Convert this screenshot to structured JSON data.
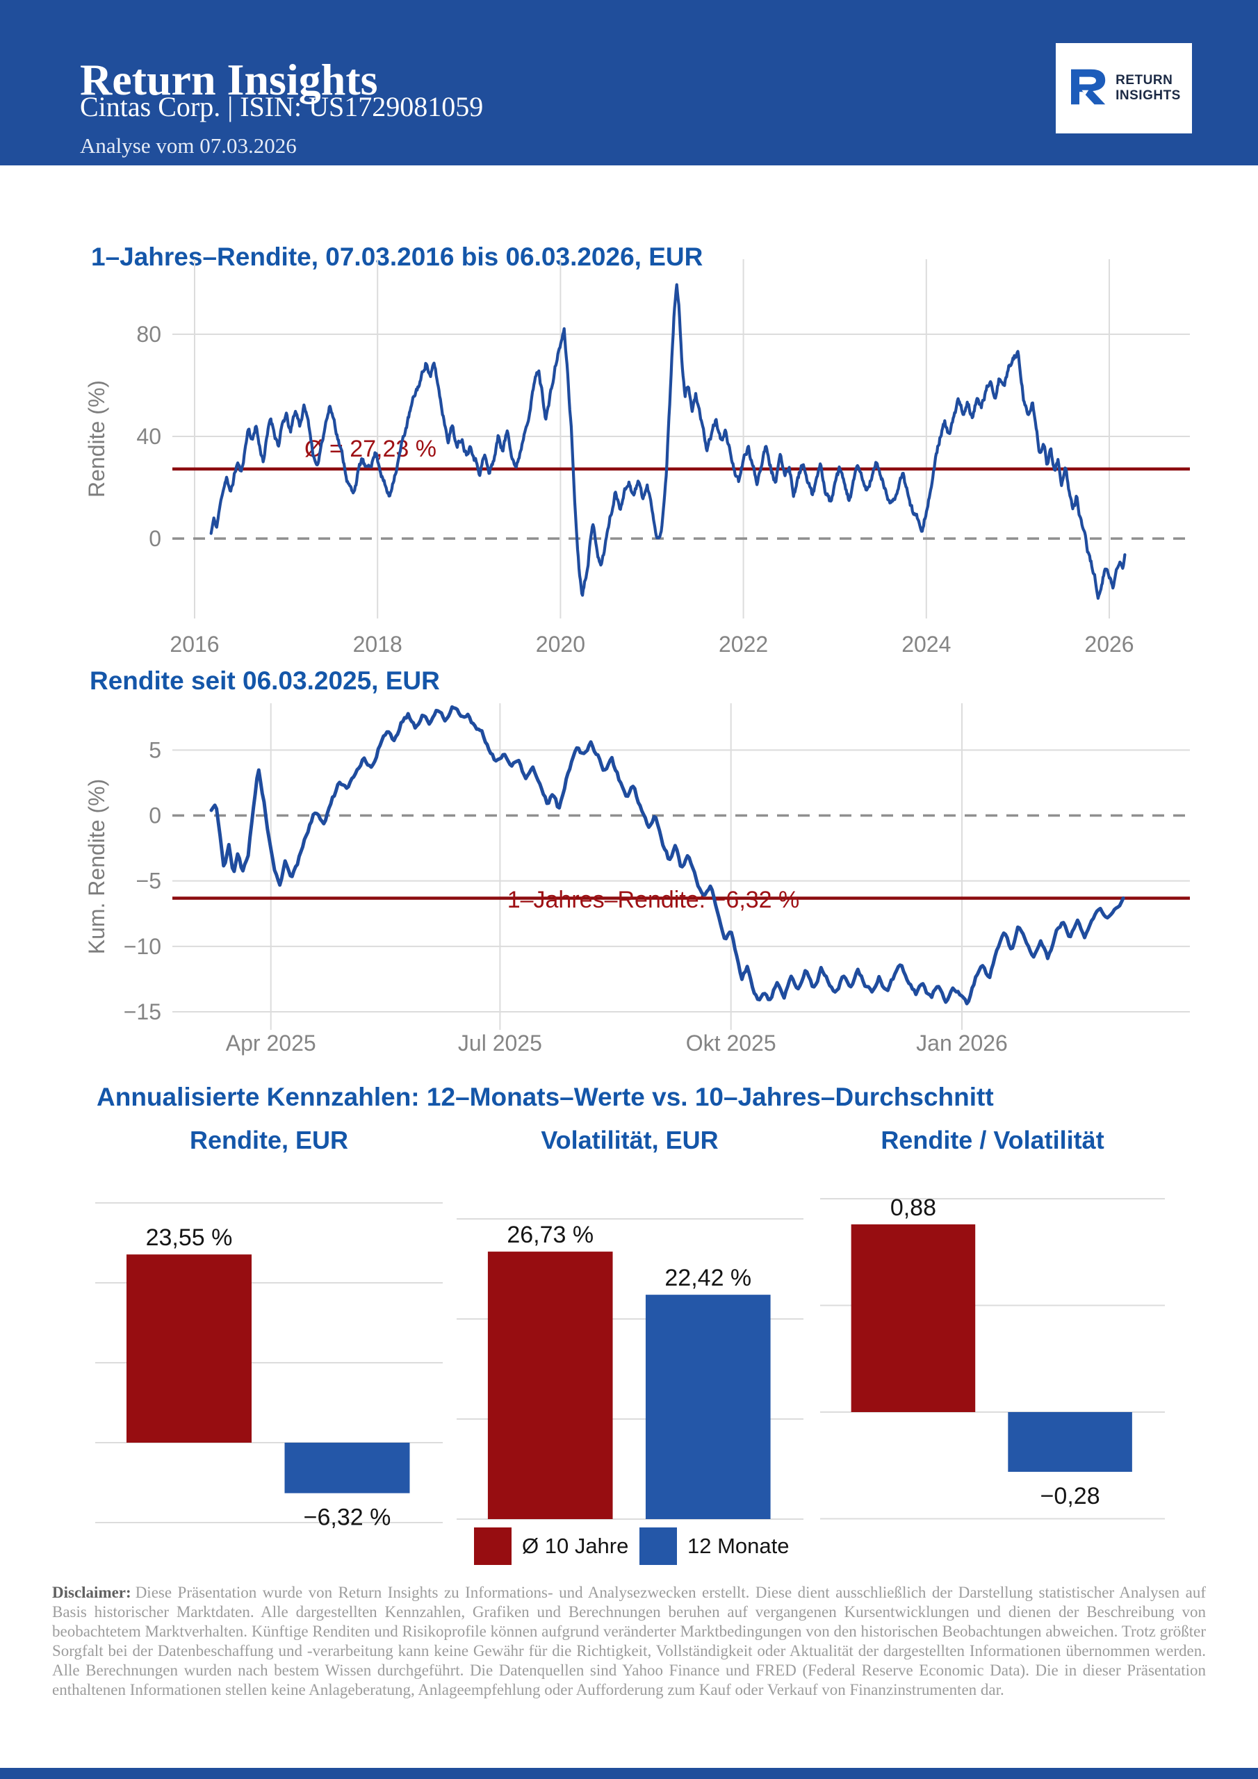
{
  "colors": {
    "header_bg": "#204e9b",
    "title_blue": "#1456a9",
    "line_blue": "#1f4c9e",
    "dark_red": "#970d11",
    "dark_red_line": "#8c0c0f",
    "annotation_red": "#9e1014",
    "bar_blue": "#2457a8",
    "grid_gray": "#dcdcdc",
    "tick_gray": "#848484",
    "zero_dash_gray": "#8f8f8f",
    "label_black": "#141414",
    "logo_icon_blue": "#1d5cba",
    "logo_text_navy": "#1b2944"
  },
  "header": {
    "title": "Return Insights",
    "subtitle": "Cintas Corp.  |  ISIN: US1729081059",
    "analysis_date": "Analyse vom 07.03.2026",
    "logo": {
      "line1": "RETURN",
      "line2": "INSIGHTS",
      "icon": "r-arrow-logo"
    }
  },
  "chart_data": [
    {
      "id": "rolling-1y-return",
      "type": "line",
      "title": "1–Jahres–Rendite, 07.03.2016 bis 06.03.2026, EUR",
      "ylabel": "Rendite (%)",
      "xlabel": "",
      "grid": true,
      "zero_line": true,
      "line_color": "#1f4c9e",
      "x_ticks": [
        {
          "v": 2016,
          "label": "2016"
        },
        {
          "v": 2018,
          "label": "2018"
        },
        {
          "v": 2020,
          "label": "2020"
        },
        {
          "v": 2022,
          "label": "2022"
        },
        {
          "v": 2024,
          "label": "2024"
        },
        {
          "v": 2026,
          "label": "2026"
        }
      ],
      "y_ticks": [
        {
          "v": 0,
          "label": "0"
        },
        {
          "v": 40,
          "label": "40"
        },
        {
          "v": 80,
          "label": "80"
        }
      ],
      "xlim": [
        2015.88,
        2026.88
      ],
      "ylim": [
        -31,
        109
      ],
      "mean_line": {
        "value": 27.23,
        "label": "Ø = 27,23 %",
        "color": "#8c0c0f",
        "label_color": "#9e1014"
      },
      "series": [
        {
          "name": "1-Jahres-Rendite",
          "x": [
            2016.18,
            2016.21,
            2016.24,
            2016.27,
            2016.31,
            2016.35,
            2016.39,
            2016.43,
            2016.47,
            2016.51,
            2016.55,
            2016.59,
            2016.63,
            2016.67,
            2016.71,
            2016.75,
            2016.79,
            2016.83,
            2016.88,
            2016.92,
            2016.96,
            2017.0,
            2017.05,
            2017.1,
            2017.15,
            2017.2,
            2017.25,
            2017.3,
            2017.34,
            2017.38,
            2017.43,
            2017.48,
            2017.53,
            2017.58,
            2017.63,
            2017.68,
            2017.73,
            2017.78,
            2017.83,
            2017.88,
            2017.93,
            2017.98,
            2018.03,
            2018.08,
            2018.13,
            2018.18,
            2018.24,
            2018.3,
            2018.36,
            2018.42,
            2018.48,
            2018.53,
            2018.58,
            2018.62,
            2018.67,
            2018.72,
            2018.77,
            2018.82,
            2018.87,
            2018.92,
            2018.97,
            2019.02,
            2019.07,
            2019.12,
            2019.17,
            2019.22,
            2019.27,
            2019.32,
            2019.37,
            2019.42,
            2019.47,
            2019.52,
            2019.57,
            2019.62,
            2019.67,
            2019.72,
            2019.76,
            2019.8,
            2019.84,
            2019.88,
            2019.92,
            2019.96,
            2020.0,
            2020.04,
            2020.08,
            2020.12,
            2020.16,
            2020.2,
            2020.24,
            2020.28,
            2020.32,
            2020.36,
            2020.4,
            2020.44,
            2020.48,
            2020.52,
            2020.56,
            2020.6,
            2020.65,
            2020.7,
            2020.75,
            2020.8,
            2020.85,
            2020.9,
            2020.95,
            2021.0,
            2021.04,
            2021.08,
            2021.12,
            2021.16,
            2021.2,
            2021.24,
            2021.27,
            2021.3,
            2021.33,
            2021.36,
            2021.4,
            2021.44,
            2021.48,
            2021.52,
            2021.56,
            2021.6,
            2021.65,
            2021.7,
            2021.75,
            2021.8,
            2021.85,
            2021.9,
            2021.95,
            2022.0,
            2022.05,
            2022.1,
            2022.15,
            2022.2,
            2022.25,
            2022.3,
            2022.35,
            2022.4,
            2022.45,
            2022.5,
            2022.55,
            2022.6,
            2022.65,
            2022.7,
            2022.75,
            2022.8,
            2022.85,
            2022.9,
            2022.95,
            2023.0,
            2023.05,
            2023.1,
            2023.15,
            2023.2,
            2023.25,
            2023.3,
            2023.35,
            2023.4,
            2023.45,
            2023.5,
            2023.55,
            2023.6,
            2023.65,
            2023.7,
            2023.75,
            2023.8,
            2023.85,
            2023.9,
            2023.95,
            2024.0,
            2024.05,
            2024.1,
            2024.15,
            2024.2,
            2024.25,
            2024.3,
            2024.35,
            2024.4,
            2024.45,
            2024.5,
            2024.55,
            2024.6,
            2024.65,
            2024.7,
            2024.75,
            2024.8,
            2024.85,
            2024.9,
            2024.95,
            2025.0,
            2025.04,
            2025.08,
            2025.12,
            2025.16,
            2025.2,
            2025.24,
            2025.28,
            2025.32,
            2025.36,
            2025.4,
            2025.44,
            2025.48,
            2025.52,
            2025.56,
            2025.6,
            2025.64,
            2025.68,
            2025.72,
            2025.76,
            2025.8,
            2025.84,
            2025.88,
            2025.92,
            2025.95,
            2026.0,
            2026.04,
            2026.08,
            2026.12,
            2026.15,
            2026.17
          ],
          "y": [
            2,
            8,
            4,
            11,
            19,
            25,
            17,
            24,
            30,
            25,
            35,
            44,
            38,
            45,
            36,
            31,
            39,
            47,
            41,
            37,
            44,
            48,
            41,
            50,
            45,
            52,
            44,
            33,
            26,
            36,
            46,
            52,
            46,
            38,
            30,
            22,
            17,
            25,
            31,
            26,
            30,
            34,
            28,
            21,
            16,
            25,
            33,
            42,
            50,
            57,
            63,
            70,
            63,
            68,
            58,
            48,
            40,
            45,
            35,
            40,
            34,
            38,
            32,
            27,
            33,
            25,
            31,
            40,
            35,
            42,
            34,
            28,
            36,
            45,
            53,
            62,
            66,
            57,
            48,
            54,
            62,
            70,
            76,
            81,
            64,
            42,
            12,
            -10,
            -21,
            -13,
            -2,
            6,
            -3,
            -11,
            -4,
            4,
            11,
            18,
            13,
            19,
            23,
            17,
            22,
            16,
            20,
            12,
            4,
            0,
            9,
            28,
            58,
            86,
            101,
            88,
            66,
            55,
            61,
            50,
            57,
            48,
            41,
            34,
            41,
            46,
            38,
            43,
            34,
            28,
            21,
            30,
            36,
            28,
            22,
            31,
            38,
            29,
            23,
            31,
            25,
            29,
            18,
            24,
            30,
            22,
            16,
            23,
            28,
            18,
            14,
            20,
            26,
            21,
            15,
            21,
            27,
            23,
            18,
            24,
            29,
            25,
            19,
            13,
            17,
            21,
            24,
            17,
            11,
            8,
            5,
            12,
            20,
            30,
            40,
            45,
            39,
            47,
            53,
            48,
            54,
            49,
            56,
            51,
            57,
            62,
            56,
            63,
            59,
            66,
            71,
            73,
            63,
            52,
            47,
            52,
            40,
            33,
            38,
            30,
            35,
            26,
            31,
            22,
            27,
            17,
            12,
            16,
            8,
            2,
            -4,
            -9,
            -15,
            -21,
            -18,
            -12,
            -15,
            -19,
            -12,
            -9,
            -12,
            -6.3
          ]
        }
      ],
      "noise": {
        "seed": 11,
        "amp": 2.2,
        "samples": 1300
      }
    },
    {
      "id": "cumulative-return-1y",
      "type": "line",
      "title": "Rendite seit 06.03.2025, EUR",
      "ylabel": "Kum. Rendite (%)",
      "xlabel": "",
      "grid": true,
      "zero_line": true,
      "line_color": "#1f4c9e",
      "x_ticks": [
        {
          "v": 2025.246,
          "label": "Apr 2025"
        },
        {
          "v": 2025.496,
          "label": "Jul 2025"
        },
        {
          "v": 2025.748,
          "label": "Okt 2025"
        },
        {
          "v": 2026.0,
          "label": "Jan 2026"
        }
      ],
      "y_ticks": [
        {
          "v": 5,
          "label": "5"
        },
        {
          "v": 0,
          "label": "0"
        },
        {
          "v": -5,
          "label": "−5"
        },
        {
          "v": -10,
          "label": "−10"
        },
        {
          "v": -15,
          "label": "−15"
        }
      ],
      "xlim": [
        2025.138,
        2026.245
      ],
      "ylim": [
        -16.4,
        8.6
      ],
      "mean_line": {
        "value": -6.32,
        "label": "1–Jahres–Rendite: −6,32 %",
        "color": "#8c0c0f",
        "label_color": "#9e1014"
      },
      "series": [
        {
          "name": "Kumulierte Rendite",
          "x": [
            2025.181,
            2025.186,
            2025.19,
            2025.195,
            2025.2,
            2025.205,
            2025.21,
            2025.215,
            2025.221,
            2025.227,
            2025.232,
            2025.238,
            2025.244,
            2025.25,
            2025.256,
            2025.262,
            2025.268,
            2025.274,
            2025.281,
            2025.288,
            2025.295,
            2025.303,
            2025.312,
            2025.321,
            2025.33,
            2025.339,
            2025.348,
            2025.356,
            2025.364,
            2025.372,
            2025.38,
            2025.388,
            2025.396,
            2025.404,
            2025.412,
            2025.42,
            2025.428,
            2025.436,
            2025.444,
            2025.452,
            2025.46,
            2025.468,
            2025.476,
            2025.484,
            2025.492,
            2025.5,
            2025.508,
            2025.516,
            2025.524,
            2025.532,
            2025.54,
            2025.548,
            2025.554,
            2025.56,
            2025.567,
            2025.574,
            2025.581,
            2025.588,
            2025.595,
            2025.602,
            2025.61,
            2025.618,
            2025.626,
            2025.634,
            2025.642,
            2025.65,
            2025.658,
            2025.665,
            2025.672,
            2025.68,
            2025.687,
            2025.694,
            2025.702,
            2025.71,
            2025.718,
            2025.726,
            2025.734,
            2025.742,
            2025.748,
            2025.754,
            2025.76,
            2025.766,
            2025.772,
            2025.778,
            2025.784,
            2025.79,
            2025.798,
            2025.806,
            2025.814,
            2025.822,
            2025.83,
            2025.838,
            2025.846,
            2025.854,
            2025.862,
            2025.87,
            2025.878,
            2025.886,
            2025.894,
            2025.902,
            2025.91,
            2025.918,
            2025.926,
            2025.934,
            2025.942,
            2025.95,
            2025.958,
            2025.966,
            2025.974,
            2025.982,
            2025.99,
            2025.998,
            2026.006,
            2026.014,
            2026.022,
            2026.03,
            2026.038,
            2026.046,
            2026.054,
            2026.062,
            2026.07,
            2026.078,
            2026.086,
            2026.094,
            2026.102,
            2026.11,
            2026.118,
            2026.126,
            2026.134,
            2026.142,
            2026.15,
            2026.158,
            2026.166,
            2026.172,
            2026.176
          ],
          "y": [
            0.4,
            0.9,
            -1.2,
            -4.2,
            -2.2,
            -4.6,
            -2.8,
            -4.4,
            -3.1,
            0.8,
            3.8,
            1.4,
            -1.8,
            -4.0,
            -5.6,
            -3.6,
            -4.9,
            -3.9,
            -2.3,
            -0.8,
            0.4,
            -0.6,
            1.2,
            2.5,
            1.7,
            3.3,
            4.6,
            3.7,
            5.3,
            6.4,
            5.7,
            7.1,
            7.8,
            6.7,
            7.9,
            7.1,
            8.1,
            7.5,
            8.3,
            7.6,
            8.0,
            7.0,
            6.2,
            5.0,
            4.2,
            4.8,
            3.6,
            4.5,
            3.0,
            3.9,
            2.4,
            1.0,
            2.0,
            0.6,
            2.6,
            4.3,
            5.3,
            4.5,
            5.6,
            4.7,
            3.4,
            4.3,
            2.8,
            1.4,
            2.3,
            0.6,
            -1.2,
            0.2,
            -1.7,
            -3.3,
            -2.4,
            -4.1,
            -3.1,
            -5.1,
            -6.3,
            -5.4,
            -7.4,
            -9.4,
            -8.5,
            -10.6,
            -12.4,
            -11.5,
            -13.4,
            -14.3,
            -13.1,
            -14.1,
            -12.6,
            -13.7,
            -12.1,
            -13.3,
            -11.9,
            -13.1,
            -11.6,
            -12.7,
            -13.5,
            -12.3,
            -13.3,
            -12.1,
            -12.9,
            -13.7,
            -12.5,
            -13.5,
            -12.3,
            -11.5,
            -12.7,
            -13.6,
            -12.8,
            -13.9,
            -12.9,
            -13.9,
            -12.7,
            -13.6,
            -14.7,
            -12.9,
            -11.2,
            -12.3,
            -10.2,
            -9.0,
            -10.3,
            -8.6,
            -9.8,
            -11.0,
            -9.6,
            -10.9,
            -9.2,
            -8.0,
            -9.3,
            -8.2,
            -9.6,
            -8.4,
            -7.2,
            -8.0,
            -7.2,
            -6.9,
            -6.32
          ]
        }
      ],
      "noise": {
        "seed": 5,
        "amp": 0.4,
        "samples": 520
      }
    },
    {
      "id": "bar-rendite-eur",
      "type": "bar",
      "title": "Rendite, EUR",
      "categories": [
        "Ø 10 Jahre",
        "12 Monate"
      ],
      "values": [
        23.55,
        -6.32
      ],
      "value_labels": [
        "23,55 %",
        "−6,32 %"
      ],
      "colors": [
        "#970d11",
        "#2457a8"
      ],
      "grid_values": [
        30,
        20,
        10,
        0,
        -10
      ],
      "ylim": [
        -10.8,
        32.7
      ]
    },
    {
      "id": "bar-volatilitaet-eur",
      "type": "bar",
      "title": "Volatilität, EUR",
      "categories": [
        "Ø 10 Jahre",
        "12 Monate"
      ],
      "values": [
        26.73,
        22.42
      ],
      "value_labels": [
        "26,73 %",
        "22,42 %"
      ],
      "colors": [
        "#970d11",
        "#2457a8"
      ],
      "grid_values": [
        30,
        20,
        10,
        0
      ],
      "ylim": [
        -1.0,
        33.8
      ]
    },
    {
      "id": "bar-rendite-volatilitaet",
      "type": "bar",
      "title": "Rendite / Volatilität",
      "categories": [
        "Ø 10 Jahre",
        "12 Monate"
      ],
      "values": [
        0.88,
        -0.28
      ],
      "value_labels": [
        "0,88",
        "−0,28"
      ],
      "colors": [
        "#970d11",
        "#2457a8"
      ],
      "grid_values": [
        1.0,
        0.5,
        0,
        -0.5
      ],
      "ylim": [
        -0.55,
        1.08
      ]
    }
  ],
  "kennzahlen": {
    "heading": "Annualisierte Kennzahlen: 12–Monats–Werte vs. 10–Jahres–Durchschnitt",
    "legend": [
      {
        "label": "Ø 10 Jahre",
        "color": "#970d11"
      },
      {
        "label": "12 Monate",
        "color": "#2457a8"
      }
    ]
  },
  "disclaimer": {
    "label": "Disclaimer:",
    "text": "Diese Präsentation wurde von Return Insights zu Informations- und Analysezwecken erstellt. Diese dient ausschließlich der Darstellung statistischer Analysen auf Basis historischer Marktdaten. Alle dargestellten Kennzahlen, Grafiken und Berechnungen beruhen auf vergangenen Kursentwicklungen und dienen der Beschreibung von beobachtetem Marktverhalten. Künftige Renditen und Risikoprofile können aufgrund veränderter Marktbedingungen von den historischen Beobachtungen abweichen. Trotz größter Sorgfalt bei der Datenbeschaffung und -verarbeitung kann keine Gewähr für die Richtigkeit, Vollständigkeit oder Aktualität der dargestellten Informationen übernommen werden. Alle Berechnungen wurden nach bestem Wissen durchgeführt. Die Datenquellen sind Yahoo Finance und FRED (Federal Reserve Economic Data). Die in dieser Präsentation enthaltenen Informationen stellen keine Anlageberatung, Anlageempfehlung oder Aufforderung zum Kauf oder Verkauf von Finanzinstrumenten dar."
  }
}
